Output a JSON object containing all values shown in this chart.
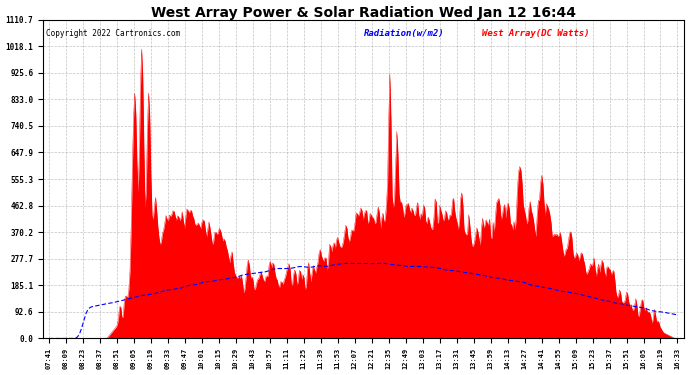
{
  "title": "West Array Power & Solar Radiation Wed Jan 12 16:44",
  "copyright": "Copyright 2022 Cartronics.com",
  "legend_radiation": "Radiation(w/m2)",
  "legend_west": "West Array(DC Watts)",
  "yticks": [
    0.0,
    92.6,
    185.1,
    277.7,
    370.2,
    462.8,
    555.3,
    647.9,
    740.5,
    833.0,
    925.6,
    1018.1,
    1110.7
  ],
  "ymax": 1110.7,
  "ymin": 0.0,
  "x_labels": [
    "07:41",
    "08:09",
    "08:23",
    "08:37",
    "08:51",
    "09:05",
    "09:19",
    "09:33",
    "09:47",
    "10:01",
    "10:15",
    "10:29",
    "10:43",
    "10:57",
    "11:11",
    "11:25",
    "11:39",
    "11:53",
    "12:07",
    "12:21",
    "12:35",
    "12:49",
    "13:03",
    "13:17",
    "13:31",
    "13:45",
    "13:59",
    "14:13",
    "14:27",
    "14:41",
    "14:55",
    "15:09",
    "15:23",
    "15:37",
    "15:51",
    "16:05",
    "16:19",
    "16:33"
  ],
  "background": "#ffffff",
  "plot_bg": "#ffffff",
  "grid_color": "#aaaaaa",
  "radiation_color": "#0000ff",
  "west_array_color": "#ff0000",
  "title_fontsize": 10,
  "copyright_fontsize": 5.5,
  "legend_fontsize": 6.5,
  "tick_fontsize": 5,
  "ytick_fontsize": 5.5
}
